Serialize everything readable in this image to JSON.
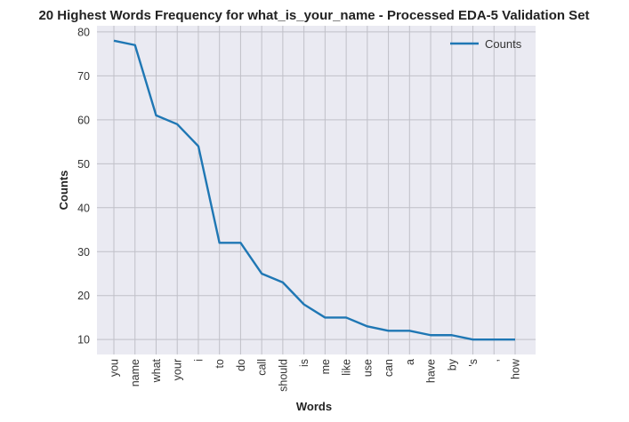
{
  "chart_data": {
    "type": "line",
    "title": "20 Highest Words Frequency for what_is_your_name - Processed EDA-5 Validation Set",
    "xlabel": "Words",
    "ylabel": "Counts",
    "categories": [
      "you",
      "name",
      "what",
      "your",
      "i",
      "to",
      "do",
      "call",
      "should",
      "is",
      "me",
      "like",
      "use",
      "can",
      "a",
      "have",
      "by",
      "'s",
      ",",
      "how"
    ],
    "series": [
      {
        "name": "Counts",
        "color": "#1f77b4",
        "values": [
          78,
          77,
          61,
          59,
          54,
          32,
          32,
          25,
          23,
          18,
          15,
          15,
          13,
          12,
          12,
          11,
          11,
          10,
          10,
          10
        ]
      }
    ],
    "y_ticks": [
      10,
      20,
      30,
      40,
      50,
      60,
      70,
      80
    ],
    "ylim": [
      6.6,
      81.4
    ],
    "grid": true,
    "legend": "top-right",
    "colors": {
      "background": "#eaeaf2",
      "grid": "#c0c0c8",
      "line": "#1f77b4"
    }
  }
}
